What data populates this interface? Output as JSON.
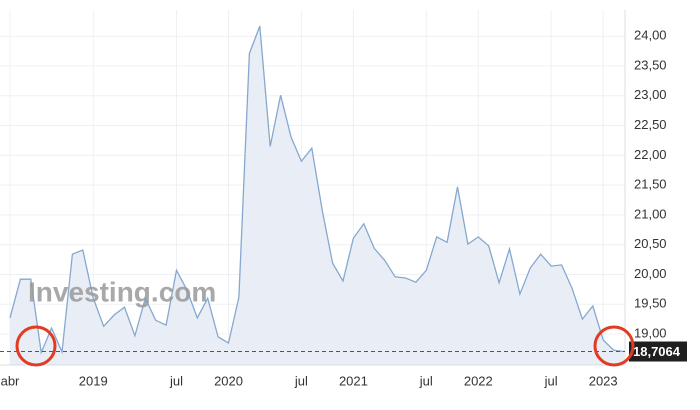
{
  "chart_data": {
    "type": "area",
    "watermark": "Investing.com",
    "categories": [
      "abr",
      null,
      null,
      null,
      null,
      null,
      null,
      null,
      "2019",
      null,
      null,
      null,
      null,
      null,
      null,
      null,
      "jul",
      null,
      null,
      null,
      null,
      "2020",
      null,
      null,
      null,
      null,
      null,
      null,
      "jul",
      null,
      null,
      null,
      null,
      "2021",
      null,
      null,
      null,
      null,
      null,
      null,
      "jul",
      null,
      null,
      null,
      null,
      "2022",
      null,
      null,
      null,
      null,
      null,
      null,
      "jul",
      null,
      null,
      null,
      null,
      "2023",
      null,
      null
    ],
    "values": [
      19.27,
      19.92,
      19.92,
      18.69,
      19.1,
      18.7,
      20.34,
      20.41,
      19.6,
      19.13,
      19.32,
      19.45,
      18.97,
      19.6,
      19.23,
      19.15,
      20.07,
      19.74,
      19.27,
      19.6,
      18.95,
      18.85,
      19.62,
      23.71,
      24.17,
      22.15,
      23.01,
      22.31,
      21.9,
      22.12,
      21.08,
      20.19,
      19.89,
      20.61,
      20.85,
      20.44,
      20.24,
      19.96,
      19.94,
      19.87,
      20.07,
      20.63,
      20.54,
      21.47,
      20.51,
      20.63,
      20.48,
      19.86,
      20.43,
      19.67,
      20.11,
      20.34,
      20.14,
      20.16,
      19.77,
      19.25,
      19.47,
      18.9,
      18.73,
      18.7064
    ],
    "value_labels": [
      null,
      null,
      null,
      null,
      null,
      null,
      null,
      null,
      null,
      null,
      null,
      null,
      null,
      null,
      null,
      null,
      null,
      null,
      null,
      null,
      null,
      null,
      null,
      null,
      null,
      null,
      null,
      null,
      null,
      null,
      null,
      null,
      null,
      null,
      null,
      null,
      null,
      null,
      null,
      null,
      null,
      null,
      null,
      null,
      null,
      null,
      null,
      null,
      null,
      null,
      null,
      null,
      null,
      null,
      null,
      null,
      null,
      null,
      null,
      "18,7064"
    ],
    "color": "#86a8cf",
    "fill": "#e9eef6",
    "ylim": [
      18.48,
      24.44
    ],
    "yticks": [
      {
        "value": 19,
        "label": "19,00"
      },
      {
        "value": 19.5,
        "label": "19,50"
      },
      {
        "value": 20,
        "label": "20,00"
      },
      {
        "value": 20.5,
        "label": "20,50"
      },
      {
        "value": 21,
        "label": "21,00"
      },
      {
        "value": 21.5,
        "label": "21,50"
      },
      {
        "value": 22,
        "label": "22,00"
      },
      {
        "value": 22.5,
        "label": "22,50"
      },
      {
        "value": 23,
        "label": "23,00"
      },
      {
        "value": 23.5,
        "label": "23,50"
      },
      {
        "value": 24,
        "label": "24,00"
      }
    ],
    "grid": true
  }
}
